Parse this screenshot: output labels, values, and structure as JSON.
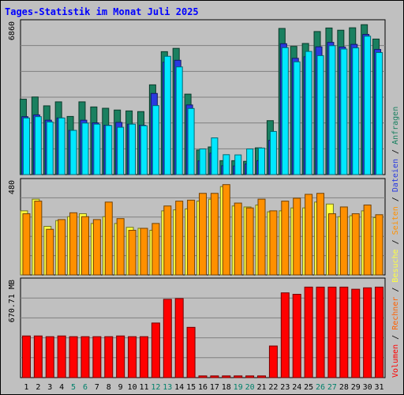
{
  "chart_data": [
    {
      "type": "bar",
      "title": "Tages-Statistik im Monat Juli 2025",
      "ylabel_max": "6860",
      "legend_right": [
        "Anfragen",
        "Dateien",
        "Seiten"
      ],
      "categories": [
        "1",
        "2",
        "3",
        "4",
        "5",
        "6",
        "7",
        "8",
        "9",
        "10",
        "11",
        "12",
        "13",
        "14",
        "15",
        "16",
        "17",
        "18",
        "19",
        "20",
        "21",
        "22",
        "23",
        "24",
        "25",
        "26",
        "27",
        "28",
        "29",
        "30",
        "31"
      ],
      "ylim": [
        0,
        6860
      ],
      "series": [
        {
          "name": "Anfragen",
          "color": "#1a8060",
          "values": [
            3410,
            3510,
            3110,
            3290,
            2630,
            3290,
            3060,
            3000,
            2920,
            2880,
            2850,
            4060,
            5560,
            5710,
            3640,
            1110,
            1250,
            630,
            630,
            600,
            1210,
            2440,
            6610,
            5800,
            5930,
            6470,
            6630,
            6530,
            6640,
            6780,
            6130
          ]
        },
        {
          "name": "Dateien",
          "color": "#2a3ae0",
          "values": [
            2620,
            2700,
            2460,
            2560,
            2000,
            2460,
            2340,
            2230,
            2360,
            2280,
            2230,
            3670,
            5080,
            5170,
            3150,
            620,
            970,
            400,
            390,
            480,
            630,
            1550,
            5920,
            5260,
            5330,
            5780,
            5980,
            5770,
            5890,
            6340,
            5660
          ]
        },
        {
          "name": "Seiten",
          "color": "#00e8ff",
          "values": [
            2560,
            2620,
            2380,
            2560,
            2000,
            2330,
            2280,
            2220,
            2140,
            2280,
            2210,
            3120,
            5350,
            4870,
            2990,
            1160,
            1660,
            900,
            890,
            1160,
            1200,
            1950,
            5740,
            5100,
            5570,
            5380,
            5830,
            5680,
            5730,
            6260,
            5520
          ]
        }
      ]
    },
    {
      "type": "bar",
      "ylabel_max": "480",
      "legend_right": [
        "Besuche",
        "Seiten"
      ],
      "categories": [
        "1",
        "2",
        "3",
        "4",
        "5",
        "6",
        "7",
        "8",
        "9",
        "10",
        "11",
        "12",
        "13",
        "14",
        "15",
        "16",
        "17",
        "18",
        "19",
        "20",
        "21",
        "22",
        "23",
        "24",
        "25",
        "26",
        "27",
        "28",
        "29",
        "30",
        "31"
      ],
      "ylim": [
        0,
        480
      ],
      "series": [
        {
          "name": "Besuche",
          "color": "#ffff40",
          "values": [
            330,
            390,
            250,
            280,
            300,
            315,
            265,
            300,
            265,
            245,
            240,
            230,
            330,
            335,
            340,
            380,
            390,
            455,
            355,
            350,
            360,
            325,
            330,
            345,
            345,
            375,
            365,
            300,
            305,
            330,
            295
          ]
        },
        {
          "name": "Seiten",
          "color": "#ff9000",
          "values": [
            315,
            380,
            235,
            285,
            320,
            300,
            285,
            375,
            290,
            230,
            240,
            265,
            355,
            380,
            385,
            420,
            420,
            465,
            370,
            345,
            390,
            330,
            380,
            395,
            415,
            420,
            315,
            350,
            315,
            360,
            310
          ]
        }
      ]
    },
    {
      "type": "bar",
      "ylabel_max": "670.71 MB",
      "legend_right": [
        "Volumen",
        "Rechner"
      ],
      "categories": [
        "1",
        "2",
        "3",
        "4",
        "5",
        "6",
        "7",
        "8",
        "9",
        "10",
        "11",
        "12",
        "13",
        "14",
        "15",
        "16",
        "17",
        "18",
        "19",
        "20",
        "21",
        "22",
        "23",
        "24",
        "25",
        "26",
        "27",
        "28",
        "29",
        "30",
        "31"
      ],
      "ylim": [
        0,
        670.71
      ],
      "series": [
        {
          "name": "Volumen",
          "color": "#ff0000",
          "values": [
            290,
            290,
            285,
            290,
            285,
            285,
            285,
            285,
            290,
            285,
            285,
            380,
            545,
            550,
            350,
            12,
            12,
            12,
            12,
            12,
            12,
            220,
            590,
            580,
            630,
            630,
            630,
            630,
            615,
            625,
            630
          ]
        }
      ]
    }
  ],
  "colors": {
    "background": "#c0c0c0",
    "title": "#0000ff",
    "grid": "#808080",
    "weekend_label": "#00806a"
  },
  "weekend_days": [
    "5",
    "6",
    "12",
    "13",
    "19",
    "20",
    "26",
    "27"
  ]
}
